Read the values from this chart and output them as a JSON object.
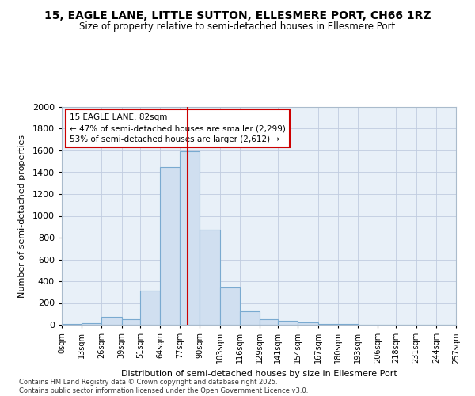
{
  "title": "15, EAGLE LANE, LITTLE SUTTON, ELLESMERE PORT, CH66 1RZ",
  "subtitle": "Size of property relative to semi-detached houses in Ellesmere Port",
  "xlabel": "Distribution of semi-detached houses by size in Ellesmere Port",
  "ylabel": "Number of semi-detached properties",
  "annotation_title": "15 EAGLE LANE: 82sqm",
  "annotation_line1": "← 47% of semi-detached houses are smaller (2,299)",
  "annotation_line2": "53% of semi-detached houses are larger (2,612) →",
  "property_size": 82,
  "bin_edges": [
    0,
    13,
    26,
    39,
    51,
    64,
    77,
    90,
    103,
    116,
    129,
    141,
    154,
    167,
    180,
    193,
    206,
    218,
    231,
    244,
    257
  ],
  "bin_labels": [
    "0sqm",
    "13sqm",
    "26sqm",
    "39sqm",
    "51sqm",
    "64sqm",
    "77sqm",
    "90sqm",
    "103sqm",
    "116sqm",
    "129sqm",
    "141sqm",
    "154sqm",
    "167sqm",
    "180sqm",
    "193sqm",
    "206sqm",
    "218sqm",
    "231sqm",
    "244sqm",
    "257sqm"
  ],
  "counts": [
    10,
    15,
    70,
    50,
    315,
    1450,
    1590,
    870,
    340,
    125,
    50,
    35,
    20,
    10,
    5,
    2,
    1,
    0,
    0,
    0
  ],
  "bar_color": "#d0dff0",
  "bar_edge_color": "#7aaad0",
  "vline_color": "#cc0000",
  "box_edge_color": "#cc0000",
  "box_face_color": "white",
  "footer": "Contains HM Land Registry data © Crown copyright and database right 2025.\nContains public sector information licensed under the Open Government Licence v3.0.",
  "ylim": [
    0,
    2000
  ],
  "yticks": [
    0,
    200,
    400,
    600,
    800,
    1000,
    1200,
    1400,
    1600,
    1800,
    2000
  ],
  "plot_bg_color": "#e8f0f8",
  "fig_bg_color": "#ffffff"
}
